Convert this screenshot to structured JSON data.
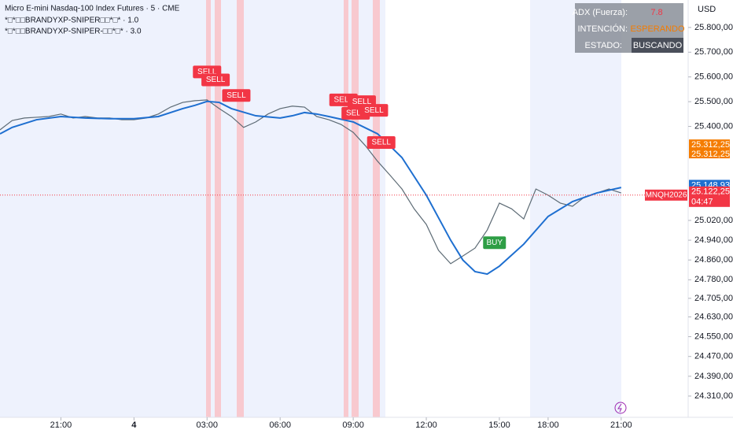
{
  "chart_data": {
    "type": "line",
    "title": "Micro E-mini Nasdaq-100 Index Futures · 5 · CME",
    "indicators": [
      "*□*□□BRANDYXP-SNIPER□□*□* · 1.0",
      "*□*□□BRANDYXP-SNIPER-□□*□* · 3.0"
    ],
    "currency": "USD",
    "xlim": [
      0.5,
      28.75
    ],
    "xticks": [
      {
        "value": 3,
        "label": "21:00"
      },
      {
        "value": 6,
        "label": "4"
      },
      {
        "value": 9,
        "label": "03:00"
      },
      {
        "value": 12,
        "label": "06:00"
      },
      {
        "value": 15,
        "label": "09:00"
      },
      {
        "value": 18,
        "label": "12:00"
      },
      {
        "value": 21,
        "label": "15:00"
      },
      {
        "value": 23,
        "label": "18:00"
      },
      {
        "value": 26,
        "label": "21:00"
      }
    ],
    "ylim": [
      24224,
      25911
    ],
    "yticks": [
      {
        "value": 25800,
        "label": "25.800,00"
      },
      {
        "value": 25700,
        "label": "25.700,00"
      },
      {
        "value": 25600,
        "label": "25.600,00"
      },
      {
        "value": 25500,
        "label": "25.500,00"
      },
      {
        "value": 25400,
        "label": "25.400,00"
      },
      {
        "value": 25020,
        "label": "25.020,00"
      },
      {
        "value": 24940,
        "label": "24.940,00"
      },
      {
        "value": 24860,
        "label": "24.860,00"
      },
      {
        "value": 24780,
        "label": "24.780,00"
      },
      {
        "value": 24705,
        "label": "24.705,00"
      },
      {
        "value": 24630,
        "label": "24.630,00"
      },
      {
        "value": 24550,
        "label": "24.550,00"
      },
      {
        "value": 24470,
        "label": "24.470,00"
      },
      {
        "value": 24390,
        "label": "24.390,00"
      },
      {
        "value": 24310,
        "label": "24.310,00"
      }
    ],
    "series": [
      {
        "name": "MNQH2026",
        "color": "#5d6b75",
        "x": [
          0.5,
          1,
          1.5,
          2,
          2.5,
          3,
          3.5,
          4,
          4.5,
          5,
          5.5,
          6,
          6.5,
          7,
          7.5,
          8,
          8.5,
          9,
          9.5,
          10,
          10.5,
          11,
          11.5,
          12,
          12.5,
          13,
          13.5,
          14,
          14.5,
          15,
          15.5,
          16,
          16.5,
          17,
          17.5,
          18,
          18.5,
          19,
          19.5,
          20,
          20.5,
          21,
          21.5,
          22,
          22.5,
          23,
          23.5,
          24,
          24.5,
          25,
          25.5,
          26
        ],
        "values": [
          25386,
          25424,
          25434,
          25437,
          25440,
          25450,
          25434,
          25440,
          25434,
          25434,
          25427,
          25427,
          25434,
          25450,
          25478,
          25497,
          25504,
          25507,
          25472,
          25440,
          25396,
          25418,
          25450,
          25472,
          25482,
          25478,
          25440,
          25427,
          25408,
          25376,
          25322,
          25259,
          25204,
          25147,
          25067,
          25004,
          24899,
          24845,
          24876,
          24908,
          24981,
          25090,
          25067,
          25026,
          25147,
          25122,
          25090,
          25077,
          25115,
          25131,
          25147,
          25131
        ]
      },
      {
        "color": "#1e6fd0",
        "x": [
          0.5,
          1,
          2,
          3,
          4,
          5,
          6,
          7,
          8,
          8.5,
          9,
          9.5,
          10,
          11,
          12,
          12.5,
          13,
          13.5,
          14,
          15,
          16,
          17,
          18,
          19,
          19.5,
          20,
          20.5,
          21,
          22,
          23,
          24,
          25,
          26
        ],
        "values": [
          25370,
          25396,
          25427,
          25440,
          25434,
          25431,
          25431,
          25440,
          25472,
          25485,
          25501,
          25497,
          25472,
          25443,
          25434,
          25443,
          25456,
          25450,
          25440,
          25418,
          25370,
          25274,
          25122,
          24940,
          24860,
          24813,
          24803,
          24835,
          24924,
          25036,
          25096,
          25131,
          25153
        ]
      }
    ],
    "signals": [
      {
        "label": "SELL",
        "x": 9,
        "value": 25620,
        "color": "#f23645"
      },
      {
        "label": "SELL",
        "x": 9.35,
        "value": 25588,
        "color": "#f23645"
      },
      {
        "label": "SELL",
        "x": 10.2,
        "value": 25525,
        "color": "#f23645"
      },
      {
        "label": "SELL",
        "x": 14.6,
        "value": 25507,
        "color": "#f23645"
      },
      {
        "label": "SELL",
        "x": 15.35,
        "value": 25500,
        "color": "#f23645"
      },
      {
        "label": "SELL",
        "x": 15.1,
        "value": 25453,
        "color": "#f23645"
      },
      {
        "label": "SELL",
        "x": 15.85,
        "value": 25465,
        "color": "#f23645"
      },
      {
        "label": "SELL",
        "x": 16.15,
        "value": 25335,
        "color": "#f23645"
      },
      {
        "label": "BUY",
        "x": 20.8,
        "value": 24930,
        "color": "#2e9e45"
      }
    ],
    "price_tags": [
      {
        "label": "25.312,25",
        "value": 25312.25,
        "color": "#f57c00"
      },
      {
        "label": "25.148,93",
        "value": 25148.93,
        "color": "#1e6fd0"
      },
      {
        "label": "25.122,25",
        "value": 25122.25,
        "color": "#f23645",
        "symbol": "MNQH2026",
        "countdown": "04:47"
      }
    ],
    "panel": [
      [
        "ADX (Fuerza):",
        "7.8"
      ],
      [
        "INTENCIÓN:",
        "ESPERANDO"
      ],
      [
        "ESTADO:",
        "BUSCANDO"
      ]
    ]
  }
}
